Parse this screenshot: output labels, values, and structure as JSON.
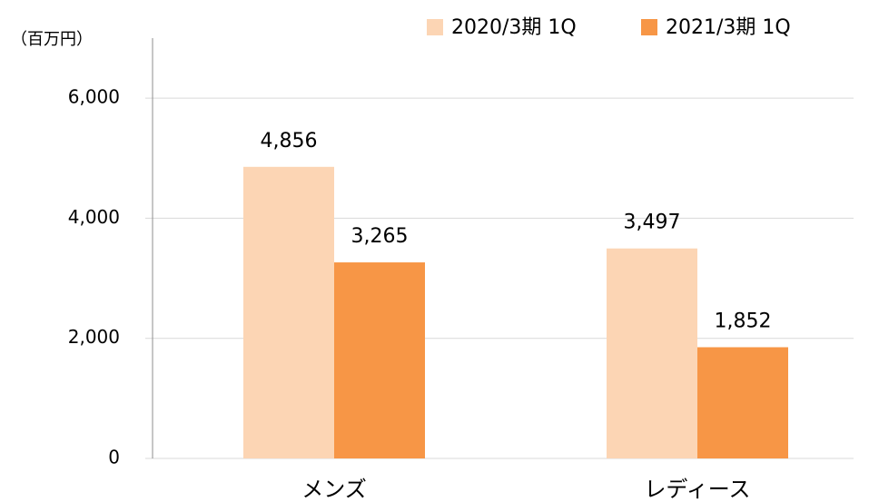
{
  "chart_data": {
    "type": "bar",
    "y_label": "（百万円）",
    "categories": [
      "メンズ",
      "レディース"
    ],
    "series": [
      {
        "name": "2020/3期 1Q",
        "color": "#fcd5b4",
        "values": [
          4856,
          3497
        ],
        "value_labels": [
          "4,856",
          "3,497"
        ]
      },
      {
        "name": "2021/3期 1Q",
        "color": "#f79646",
        "values": [
          3265,
          1852
        ],
        "value_labels": [
          "3,265",
          "1,852"
        ]
      }
    ],
    "ylim": [
      0,
      7000
    ],
    "yticks": [
      0,
      {
        "value": 2000,
        "label": "2,000"
      },
      {
        "value": 4000,
        "label": "4,000"
      },
      {
        "value": 6000,
        "label": "6,000"
      }
    ],
    "grid": true
  }
}
